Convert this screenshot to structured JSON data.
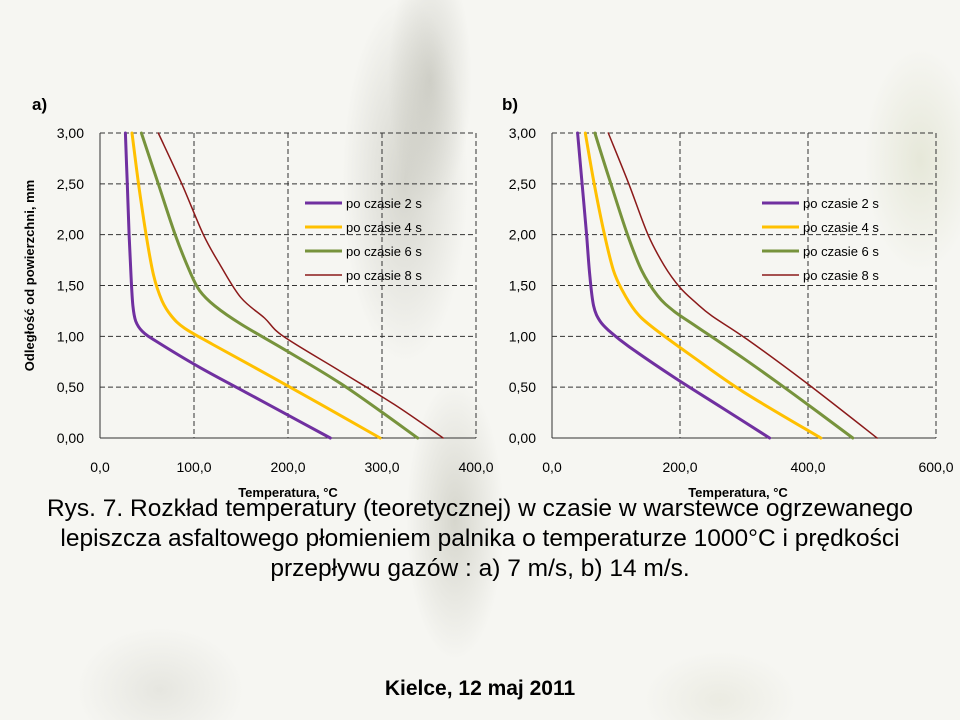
{
  "caption": "Rys. 7. Rozkład temperatury (teoretycznej) w czasie w warstewce ogrzewanego lepiszcza asfaltowego płomieniem palnika o temperaturze 1000°C i prędkości przepływu gazów : a) 7 m/s, b) 14 m/s.",
  "footer": "Kielce, 12 maj 2011",
  "colors": {
    "2s": "#7030a0",
    "4s": "#ffc000",
    "6s": "#77933c",
    "8s": "#8b1a1a"
  },
  "chart_data": [
    {
      "type": "line",
      "panel_label": "a)",
      "xlabel": "Temperatura, °C",
      "ylabel": "Odległość od powierzchni, mm",
      "xlim": [
        0,
        400
      ],
      "ylim": [
        0,
        3
      ],
      "x_ticks": [
        "0,0",
        "100,0",
        "200,0",
        "300,0",
        "400,0"
      ],
      "y_ticks": [
        "0,00",
        "0,50",
        "1,00",
        "1,50",
        "2,00",
        "2,50",
        "3,00"
      ],
      "grid": true,
      "legend_position": "top-right",
      "series": [
        {
          "name": "po czasie 2 s",
          "color": "#7030a0",
          "width": 3,
          "points": [
            [
              27,
              3.0
            ],
            [
              29,
              2.5
            ],
            [
              31,
              2.0
            ],
            [
              33,
              1.6
            ],
            [
              35,
              1.3
            ],
            [
              38,
              1.15
            ],
            [
              45,
              1.05
            ],
            [
              60,
              0.95
            ],
            [
              105,
              0.7
            ],
            [
              155,
              0.45
            ],
            [
              205,
              0.2
            ],
            [
              245,
              0.0
            ]
          ]
        },
        {
          "name": "po czasie 4 s",
          "color": "#ffc000",
          "width": 3,
          "points": [
            [
              34,
              3.0
            ],
            [
              41,
              2.5
            ],
            [
              49,
              2.0
            ],
            [
              57,
              1.6
            ],
            [
              66,
              1.35
            ],
            [
              76,
              1.2
            ],
            [
              90,
              1.08
            ],
            [
              120,
              0.92
            ],
            [
              175,
              0.64
            ],
            [
              235,
              0.33
            ],
            [
              298,
              0.0
            ]
          ]
        },
        {
          "name": "po czasie 6 s",
          "color": "#77933c",
          "width": 3,
          "points": [
            [
              44,
              3.0
            ],
            [
              62,
              2.5
            ],
            [
              80,
              2.0
            ],
            [
              95,
              1.65
            ],
            [
              106,
              1.45
            ],
            [
              122,
              1.3
            ],
            [
              150,
              1.12
            ],
            [
              200,
              0.85
            ],
            [
              262,
              0.5
            ],
            [
              338,
              0.0
            ]
          ]
        },
        {
          "name": "po czasie 8 s",
          "color": "#8b1a1a",
          "width": 1.5,
          "points": [
            [
              62,
              3.0
            ],
            [
              87,
              2.5
            ],
            [
              110,
              2.0
            ],
            [
              128,
              1.7
            ],
            [
              150,
              1.38
            ],
            [
              175,
              1.18
            ],
            [
              195,
              1.0
            ],
            [
              255,
              0.66
            ],
            [
              313,
              0.33
            ],
            [
              365,
              0.0
            ]
          ]
        }
      ]
    },
    {
      "type": "line",
      "panel_label": "b)",
      "xlabel": "Temperatura, °C",
      "xlim": [
        0,
        600
      ],
      "ylim": [
        0,
        3
      ],
      "x_ticks": [
        "0,0",
        "200,0",
        "400,0",
        "600,0"
      ],
      "y_ticks": [
        "0,00",
        "0,50",
        "1,00",
        "1,50",
        "2,00",
        "2,50",
        "3,00"
      ],
      "grid": true,
      "legend_position": "top-right",
      "series": [
        {
          "name": "po czasie 2 s",
          "color": "#7030a0",
          "width": 3,
          "points": [
            [
              40,
              3.0
            ],
            [
              47,
              2.5
            ],
            [
              54,
              2.0
            ],
            [
              59,
              1.6
            ],
            [
              65,
              1.3
            ],
            [
              75,
              1.15
            ],
            [
              90,
              1.05
            ],
            [
              120,
              0.9
            ],
            [
              190,
              0.6
            ],
            [
              265,
              0.3
            ],
            [
              340,
              0.0
            ]
          ]
        },
        {
          "name": "po czasie 4 s",
          "color": "#ffc000",
          "width": 3,
          "points": [
            [
              52,
              3.0
            ],
            [
              66,
              2.5
            ],
            [
              82,
              2.0
            ],
            [
              96,
              1.65
            ],
            [
              110,
              1.45
            ],
            [
              130,
              1.25
            ],
            [
              155,
              1.1
            ],
            [
              220,
              0.8
            ],
            [
              300,
              0.45
            ],
            [
              420,
              0.0
            ]
          ]
        },
        {
          "name": "po czasie 6 s",
          "color": "#77933c",
          "width": 3,
          "points": [
            [
              67,
              3.0
            ],
            [
              92,
              2.5
            ],
            [
              118,
              2.0
            ],
            [
              140,
              1.65
            ],
            [
              165,
              1.4
            ],
            [
              190,
              1.25
            ],
            [
              225,
              1.1
            ],
            [
              300,
              0.78
            ],
            [
              380,
              0.42
            ],
            [
              470,
              0.0
            ]
          ]
        },
        {
          "name": "po czasie 8 s",
          "color": "#8b1a1a",
          "width": 1.5,
          "points": [
            [
              88,
              3.0
            ],
            [
              120,
              2.5
            ],
            [
              150,
              2.0
            ],
            [
              175,
              1.7
            ],
            [
              200,
              1.48
            ],
            [
              225,
              1.33
            ],
            [
              250,
              1.2
            ],
            [
              305,
              0.97
            ],
            [
              400,
              0.53
            ],
            [
              508,
              0.0
            ]
          ]
        }
      ]
    }
  ]
}
